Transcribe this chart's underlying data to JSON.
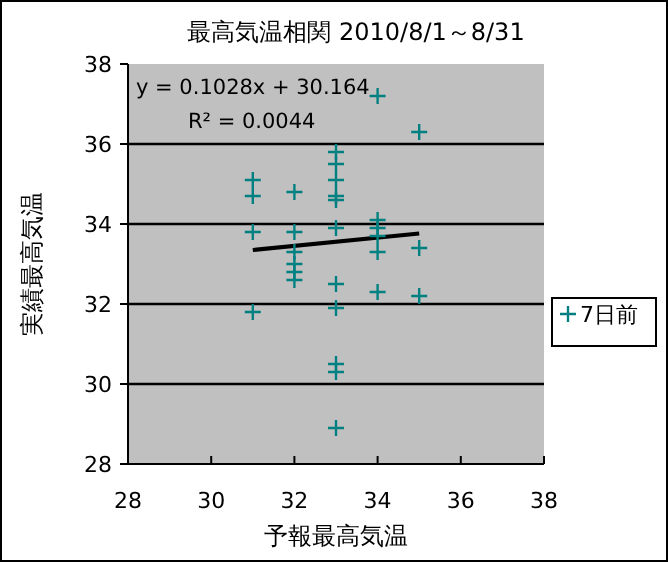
{
  "chart_data": {
    "type": "scatter",
    "title": "最高気温相関 2010/8/1～8/31",
    "xlabel": "予報最高気温",
    "ylabel": "実績最高気温",
    "xlim": [
      28,
      38
    ],
    "ylim": [
      28,
      38
    ],
    "xticks": [
      28,
      30,
      32,
      34,
      36,
      38
    ],
    "yticks": [
      28,
      30,
      32,
      34,
      36,
      38
    ],
    "grid": "y",
    "legend": "right",
    "marker": "cross",
    "annotations": [
      "y = 0.1028x + 30.164",
      "R² = 0.0044"
    ],
    "series": [
      {
        "name": "7日前",
        "color": "#008080",
        "x": [
          31,
          31,
          31,
          31,
          32,
          32,
          32,
          32,
          32,
          32,
          33,
          33,
          33,
          33,
          33,
          33,
          33,
          33,
          33,
          33,
          33,
          34,
          34,
          34,
          34,
          34,
          34,
          35,
          35,
          35
        ],
        "values": [
          35.1,
          34.7,
          33.8,
          31.8,
          34.8,
          33.8,
          33.3,
          33.0,
          32.8,
          32.6,
          35.8,
          35.5,
          35.1,
          34.7,
          34.6,
          33.9,
          32.5,
          31.9,
          30.5,
          30.3,
          28.9,
          37.2,
          34.1,
          33.9,
          33.7,
          33.3,
          32.3,
          36.3,
          33.4,
          32.2
        ]
      },
      {
        "type": "line",
        "color": "#000000",
        "marker": "none",
        "x": [
          31,
          35
        ],
        "values": [
          33.35,
          33.76
        ]
      }
    ]
  }
}
